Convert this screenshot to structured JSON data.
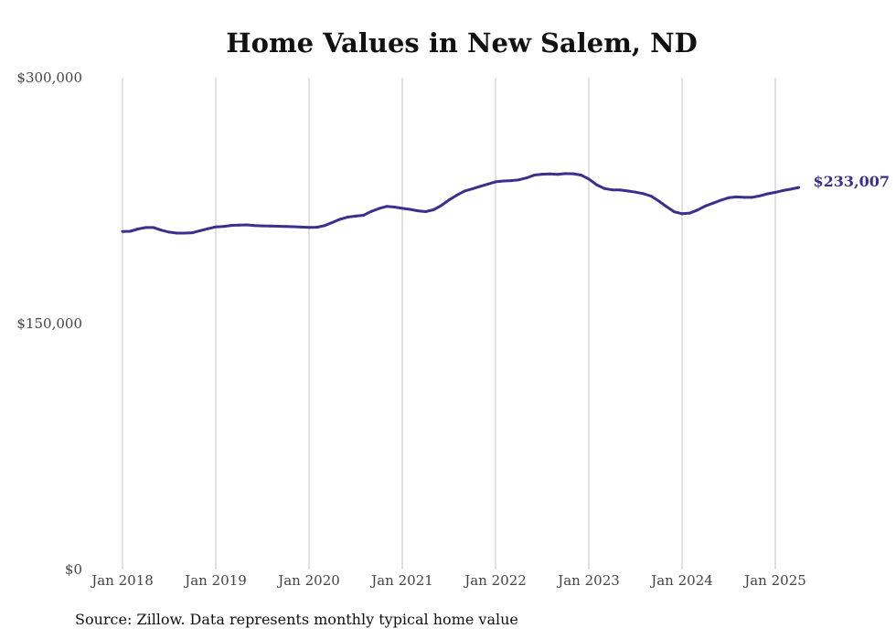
{
  "chart_data": {
    "type": "line",
    "title": "Home Values in New Salem, ND",
    "xlabel": "",
    "ylabel": "",
    "ylim": [
      0,
      300000
    ],
    "y_ticks": [
      {
        "value": 0,
        "label": "$0"
      },
      {
        "value": 150000,
        "label": "$150,000"
      },
      {
        "value": 300000,
        "label": "$300,000"
      }
    ],
    "x_ticks": [
      {
        "value": 2018.0,
        "label": "Jan 2018"
      },
      {
        "value": 2019.0,
        "label": "Jan 2019"
      },
      {
        "value": 2020.0,
        "label": "Jan 2020"
      },
      {
        "value": 2021.0,
        "label": "Jan 2021"
      },
      {
        "value": 2022.0,
        "label": "Jan 2022"
      },
      {
        "value": 2023.0,
        "label": "Jan 2023"
      },
      {
        "value": 2024.0,
        "label": "Jan 2024"
      },
      {
        "value": 2025.0,
        "label": "Jan 2025"
      }
    ],
    "xlim": [
      2018.0,
      2025.25
    ],
    "grid": "vertical",
    "line_color": "#3b2f8f",
    "end_label": "$233,007",
    "series": [
      {
        "x": [
          2018.0,
          2018.083,
          2018.167,
          2018.25,
          2018.333,
          2018.417,
          2018.5,
          2018.583,
          2018.667,
          2018.75,
          2018.833,
          2018.917,
          2019.0,
          2019.083,
          2019.167,
          2019.25,
          2019.333,
          2019.417,
          2019.5,
          2019.583,
          2019.667,
          2019.75,
          2019.833,
          2019.917,
          2020.0,
          2020.083,
          2020.167,
          2020.25,
          2020.333,
          2020.417,
          2020.5,
          2020.583,
          2020.667,
          2020.75,
          2020.833,
          2020.917,
          2021.0,
          2021.083,
          2021.167,
          2021.25,
          2021.333,
          2021.417,
          2021.5,
          2021.583,
          2021.667,
          2021.75,
          2021.833,
          2021.917,
          2022.0,
          2022.083,
          2022.167,
          2022.25,
          2022.333,
          2022.417,
          2022.5,
          2022.583,
          2022.667,
          2022.75,
          2022.833,
          2022.917,
          2023.0,
          2023.083,
          2023.167,
          2023.25,
          2023.333,
          2023.417,
          2023.5,
          2023.583,
          2023.667,
          2023.75,
          2023.833,
          2023.917,
          2024.0,
          2024.083,
          2024.167,
          2024.25,
          2024.333,
          2024.417,
          2024.5,
          2024.583,
          2024.667,
          2024.75,
          2024.833,
          2024.917,
          2025.0,
          2025.083,
          2025.167,
          2025.25
        ],
        "values": [
          206200,
          206300,
          207700,
          208600,
          208600,
          207000,
          205800,
          205200,
          205200,
          205400,
          206700,
          207900,
          209000,
          209300,
          209900,
          210100,
          210200,
          209800,
          209600,
          209500,
          209400,
          209300,
          209100,
          208900,
          208700,
          208800,
          209800,
          211700,
          213700,
          215000,
          215600,
          216100,
          218400,
          220200,
          221500,
          221100,
          220300,
          219700,
          218800,
          218300,
          219400,
          222000,
          225400,
          228300,
          230800,
          232200,
          233700,
          235100,
          236500,
          237000,
          237200,
          237700,
          238900,
          240600,
          241100,
          241300,
          241000,
          241500,
          241400,
          240600,
          238200,
          234700,
          232400,
          231600,
          231500,
          230900,
          230200,
          229300,
          227800,
          224800,
          221400,
          218200,
          217000,
          217400,
          219300,
          221700,
          223500,
          225300,
          226800,
          227300,
          227000,
          227000,
          227900,
          229200,
          230100,
          231200,
          232000,
          233007
        ]
      }
    ]
  },
  "footer": {
    "source_text": "Source: Zillow. Data represents monthly typical home value"
  }
}
